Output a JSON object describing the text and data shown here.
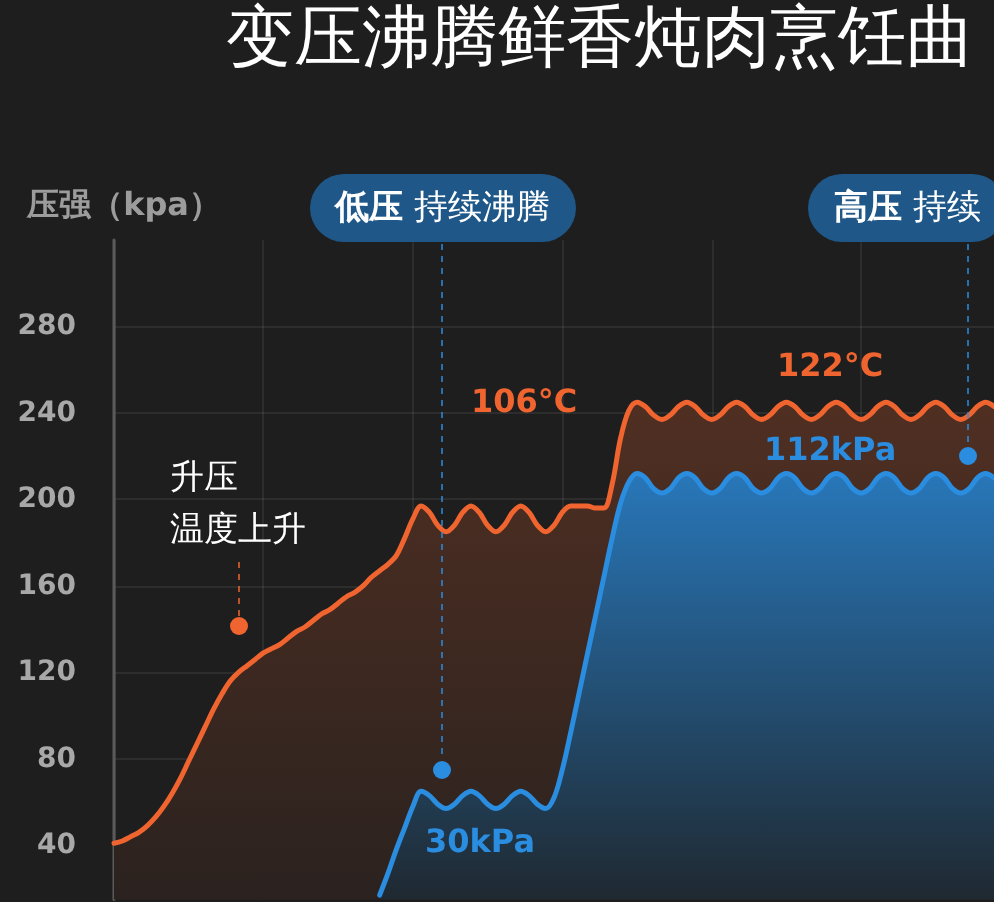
{
  "chart_data": {
    "type": "area",
    "title": "变压沸腾鲜香炖肉烹饪曲",
    "ylabel": "压强（kpa）",
    "annotations": [
      "低压 持续沸腾",
      "高压 持续",
      "升压",
      "温度上升",
      "106°C",
      "122°C",
      "112kPa",
      "30kPa"
    ],
    "categories": [
      null,
      null,
      null,
      null,
      null,
      null,
      null,
      null,
      null,
      null,
      null,
      null,
      null,
      null,
      null,
      null,
      null,
      null,
      null,
      null,
      null,
      null,
      null,
      null,
      null,
      null,
      null,
      null,
      null,
      null,
      null,
      null,
      null,
      null,
      null,
      null,
      null,
      null,
      null,
      null,
      null,
      null,
      null,
      null,
      null,
      null,
      null,
      null,
      null,
      null,
      null,
      null,
      null,
      null,
      null,
      null,
      null,
      null,
      null,
      null,
      null,
      null,
      null,
      null,
      null,
      null,
      null,
      null,
      null,
      null,
      null,
      null,
      null,
      null,
      null,
      null,
      null,
      null,
      null,
      null,
      null,
      null,
      null,
      null,
      null,
      null,
      null,
      null,
      null,
      null,
      null,
      null,
      null,
      null,
      null,
      null,
      null,
      null,
      null,
      null,
      null,
      null,
      null,
      null,
      null,
      null,
      null
    ],
    "series": [
      {
        "color": "#2a8de0",
        "values": [
          null,
          null,
          null,
          null,
          null,
          null,
          null,
          null,
          null,
          null,
          null,
          null,
          null,
          null,
          null,
          null,
          null,
          null,
          null,
          null,
          null,
          null,
          null,
          null,
          null,
          null,
          null,
          null,
          null,
          null,
          null,
          null,
          17,
          27,
          38,
          48,
          58,
          65,
          63,
          59,
          57,
          59,
          63,
          65,
          63,
          59,
          57,
          59,
          63,
          65,
          63,
          59,
          57,
          62,
          75,
          92,
          110,
          128,
          146,
          164,
          182,
          198,
          208,
          212,
          210,
          205,
          203,
          205,
          210,
          212,
          210,
          205,
          203,
          205,
          210,
          212,
          210,
          205,
          203,
          205,
          210,
          212,
          210,
          205,
          203,
          205,
          210,
          212,
          210,
          205,
          203,
          205,
          210,
          212,
          210,
          205,
          203,
          205,
          210,
          212,
          210,
          205,
          203,
          205,
          210,
          212,
          210
        ]
      },
      {
        "color": "#f0652f",
        "values": [
          41,
          42,
          44,
          46,
          49,
          53,
          58,
          64,
          71,
          79,
          87,
          95,
          103,
          110,
          116,
          120,
          123,
          126,
          129,
          131,
          133,
          136,
          139,
          141,
          144,
          147,
          149,
          152,
          155,
          157,
          160,
          164,
          167,
          170,
          174,
          182,
          191,
          197,
          194,
          188,
          185,
          188,
          194,
          197,
          194,
          188,
          185,
          188,
          194,
          197,
          194,
          188,
          185,
          188,
          194,
          197,
          197,
          197,
          196,
          196,
          207,
          228,
          241,
          245,
          243,
          239,
          237,
          239,
          243,
          245,
          243,
          239,
          237,
          239,
          243,
          245,
          243,
          239,
          237,
          239,
          243,
          245,
          243,
          239,
          237,
          239,
          243,
          245,
          243,
          239,
          237,
          239,
          243,
          245,
          243,
          239,
          237,
          239,
          243,
          245,
          243,
          239,
          237,
          239,
          243,
          245,
          243
        ]
      }
    ],
    "ylim": [
      15,
      320
    ],
    "yticks": [
      40,
      80,
      120,
      160,
      200,
      240,
      280
    ],
    "grid": true
  }
}
